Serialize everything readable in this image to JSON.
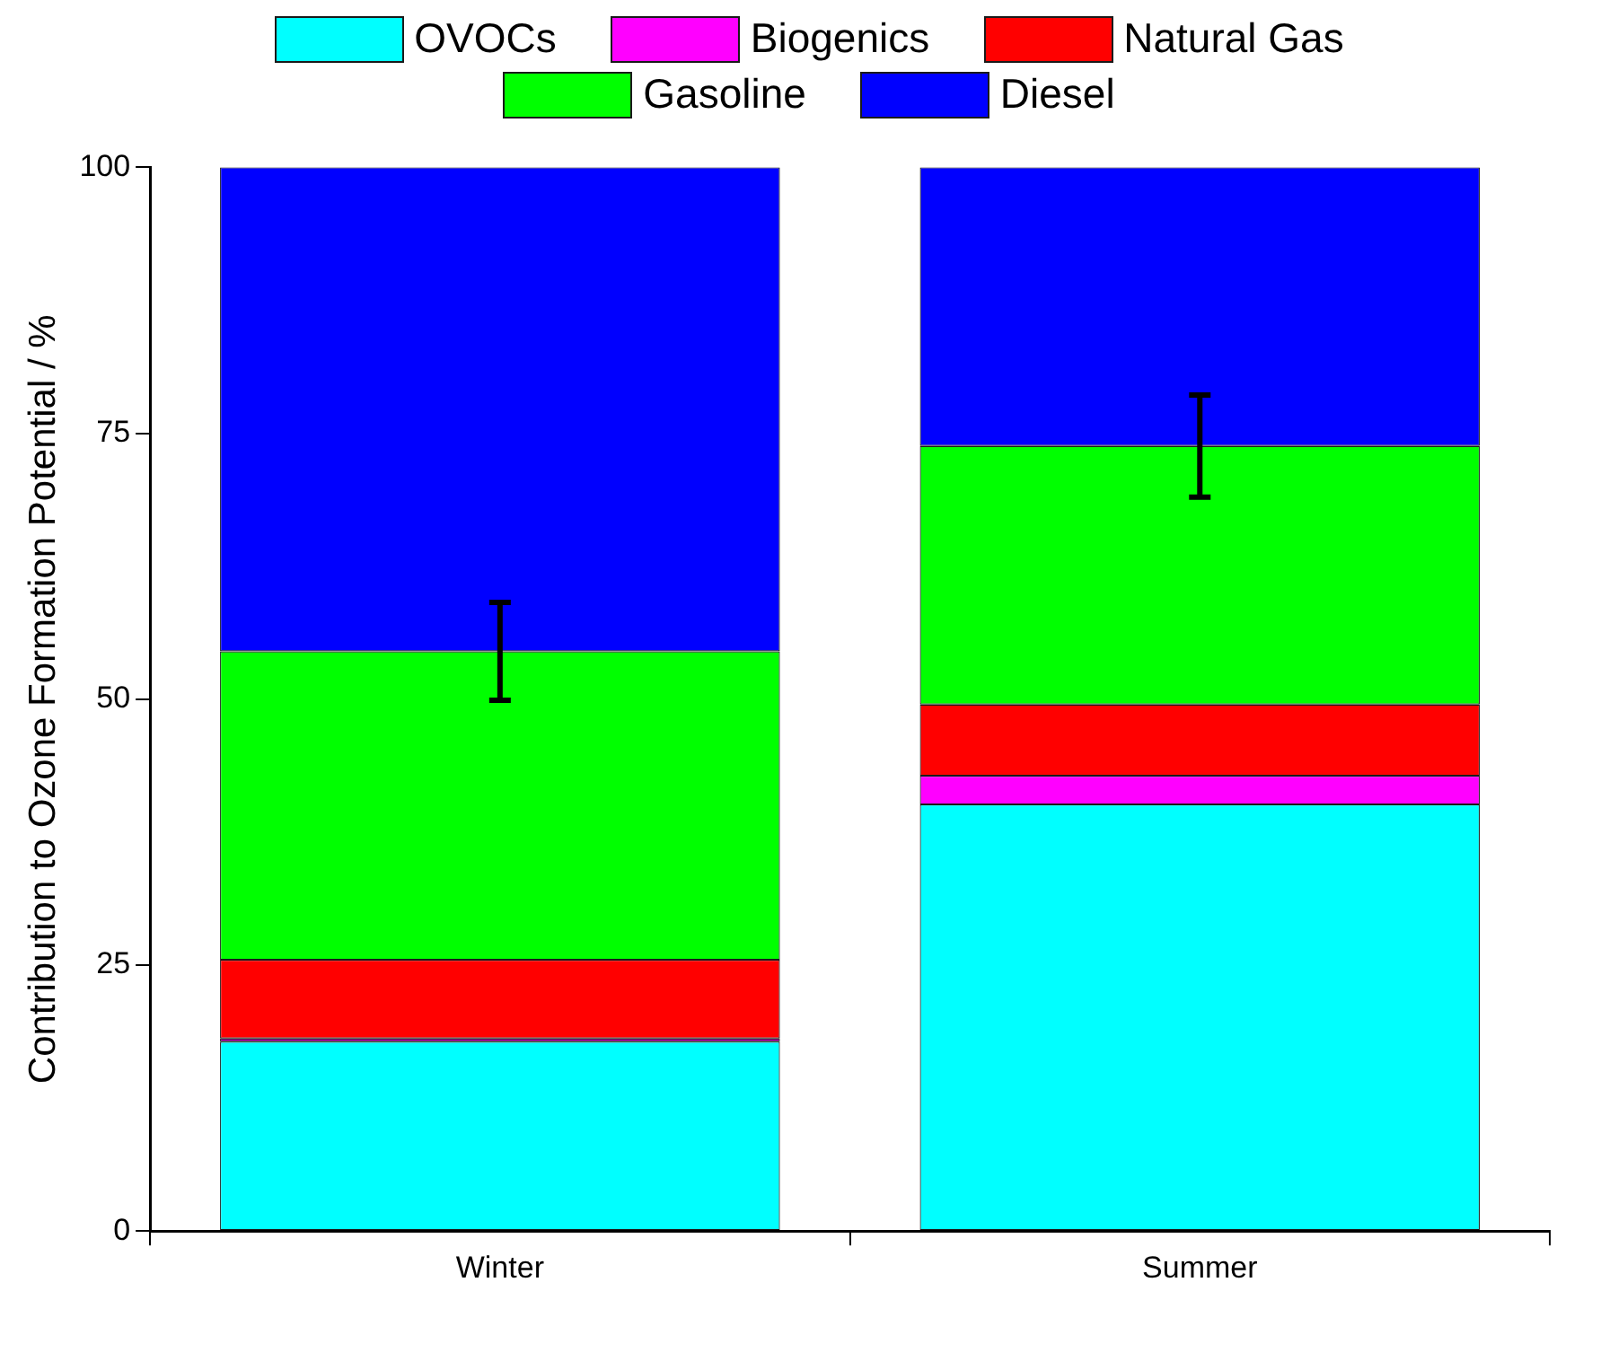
{
  "chart_data": {
    "type": "bar",
    "stacked": true,
    "ylabel": "Contribution to Ozone Formation Potential / %",
    "categories": [
      "Winter",
      "Summer"
    ],
    "ylim": [
      0,
      100
    ],
    "yticks": [
      0,
      25,
      50,
      75,
      100
    ],
    "grid": false,
    "legend": "top",
    "series": [
      {
        "name": "OVOCs",
        "color": "#00ffff",
        "values": [
          17.8,
          40.1
        ]
      },
      {
        "name": "Biogenics",
        "color": "#ff00ff",
        "values": [
          0.3,
          2.7
        ]
      },
      {
        "name": "Natural Gas",
        "color": "#ff0000",
        "values": [
          7.4,
          6.7
        ]
      },
      {
        "name": "Gasoline",
        "color": "#00ff00",
        "values": [
          29.0,
          24.3
        ],
        "errors": [
          4.6,
          4.8
        ]
      },
      {
        "name": "Diesel",
        "color": "#0000ff",
        "values": [
          45.5,
          26.2
        ]
      }
    ]
  }
}
